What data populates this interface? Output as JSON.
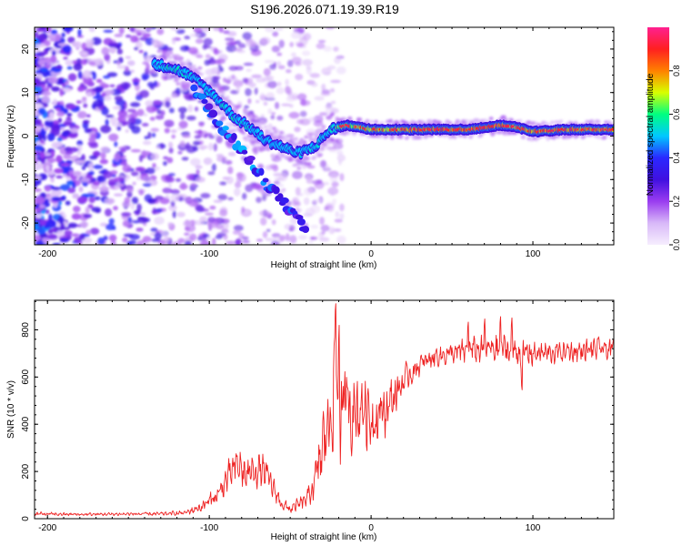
{
  "title": "S196.2026.071.19.39.R19",
  "chart_data": [
    {
      "type": "heatmap",
      "name": "spectrogram",
      "xlabel": "Height of straight line (km)",
      "ylabel": "Frequency (Hz)",
      "xlim": [
        -208,
        150
      ],
      "ylim": [
        -25,
        25
      ],
      "xticks": [
        -200,
        -100,
        0,
        100
      ],
      "yticks": [
        -20,
        -10,
        0,
        10,
        20
      ],
      "colorbar": {
        "label": "Normalized spectral amplitude",
        "range": [
          0,
          1
        ],
        "ticks": [
          "0.0",
          "0.2",
          "0.4",
          "0.6",
          "0.8"
        ],
        "colors": [
          "#f6eefe",
          "#d8b8f8",
          "#9a3cf0",
          "#4010e0",
          "#2a28ff",
          "#00c8ff",
          "#00ff80",
          "#d8ff00",
          "#ff8000",
          "#ff2020",
          "#ff2090"
        ]
      },
      "signal_track": [
        {
          "x": -135,
          "f": 16.5,
          "amp": 0.45
        },
        {
          "x": -125,
          "f": 16.0,
          "amp": 0.55
        },
        {
          "x": -115,
          "f": 14.5,
          "amp": 0.5
        },
        {
          "x": -105,
          "f": 12.0,
          "amp": 0.45
        },
        {
          "x": -95,
          "f": 8.5,
          "amp": 0.5
        },
        {
          "x": -85,
          "f": 4.5,
          "amp": 0.55
        },
        {
          "x": -75,
          "f": 2.0,
          "amp": 0.5
        },
        {
          "x": -65,
          "f": -1.0,
          "amp": 0.45
        },
        {
          "x": -55,
          "f": -2.5,
          "amp": 0.45
        },
        {
          "x": -45,
          "f": -4.0,
          "amp": 0.5
        },
        {
          "x": -35,
          "f": -2.5,
          "amp": 0.5
        },
        {
          "x": -25,
          "f": 1.5,
          "amp": 0.55
        },
        {
          "x": -15,
          "f": 2.5,
          "amp": 0.75
        },
        {
          "x": 0,
          "f": 1.5,
          "amp": 0.8
        },
        {
          "x": 20,
          "f": 1.5,
          "amp": 0.85
        },
        {
          "x": 40,
          "f": 1.5,
          "amp": 0.88
        },
        {
          "x": 60,
          "f": 1.5,
          "amp": 0.88
        },
        {
          "x": 80,
          "f": 2.5,
          "amp": 0.9
        },
        {
          "x": 90,
          "f": 2.0,
          "amp": 0.85
        },
        {
          "x": 100,
          "f": 1.0,
          "amp": 0.85
        },
        {
          "x": 120,
          "f": 1.5,
          "amp": 0.85
        },
        {
          "x": 150,
          "f": 1.5,
          "amp": 0.85
        }
      ],
      "secondary_track": [
        {
          "x": -110,
          "f": 11.0
        },
        {
          "x": -100,
          "f": 6.0
        },
        {
          "x": -90,
          "f": 1.0
        },
        {
          "x": -80,
          "f": -3.0
        },
        {
          "x": -70,
          "f": -8.0
        },
        {
          "x": -60,
          "f": -13.0
        },
        {
          "x": -50,
          "f": -17.0
        },
        {
          "x": -40,
          "f": -21.0
        }
      ]
    },
    {
      "type": "line",
      "name": "snr",
      "xlabel": "Height of straight line (km)",
      "ylabel": "SNR (10 * v/v)",
      "xlim": [
        -208,
        150
      ],
      "ylim": [
        0,
        925
      ],
      "xticks": [
        -200,
        -100,
        0,
        100
      ],
      "yticks": [
        0,
        200,
        400,
        600,
        800
      ],
      "color": "#ee2222",
      "series": [
        {
          "name": "SNR",
          "x": [
            -208,
            -180,
            -150,
            -130,
            -115,
            -105,
            -95,
            -88,
            -82,
            -78,
            -72,
            -66,
            -60,
            -55,
            -50,
            -45,
            -40,
            -35,
            -30,
            -25,
            -22,
            -20,
            -15,
            -10,
            -5,
            0,
            5,
            10,
            15,
            20,
            25,
            30,
            40,
            50,
            60,
            70,
            80,
            90,
            100,
            110,
            120,
            130,
            140,
            150
          ],
          "values": [
            20,
            18,
            20,
            20,
            25,
            50,
            100,
            180,
            230,
            180,
            210,
            200,
            120,
            60,
            40,
            60,
            80,
            150,
            300,
            450,
            600,
            400,
            500,
            450,
            480,
            420,
            450,
            470,
            530,
            580,
            620,
            650,
            690,
            700,
            710,
            720,
            720,
            710,
            700,
            700,
            710,
            710,
            720,
            715
          ],
          "amplitude": [
            8,
            6,
            6,
            8,
            10,
            20,
            40,
            60,
            80,
            70,
            70,
            60,
            40,
            25,
            20,
            25,
            30,
            70,
            150,
            180,
            200,
            200,
            180,
            160,
            150,
            120,
            110,
            100,
            80,
            60,
            50,
            45,
            40,
            45,
            50,
            55,
            60,
            60,
            50,
            45,
            45,
            45,
            45,
            40
          ],
          "peaks": [
            {
              "x": -22,
              "y": 920
            },
            {
              "x": -20,
              "y": 840
            },
            {
              "x": 60,
              "y": 840
            },
            {
              "x": 70,
              "y": 855
            },
            {
              "x": 80,
              "y": 865
            },
            {
              "x": 87,
              "y": 860
            },
            {
              "x": 93,
              "y": 540
            }
          ]
        }
      ]
    }
  ]
}
